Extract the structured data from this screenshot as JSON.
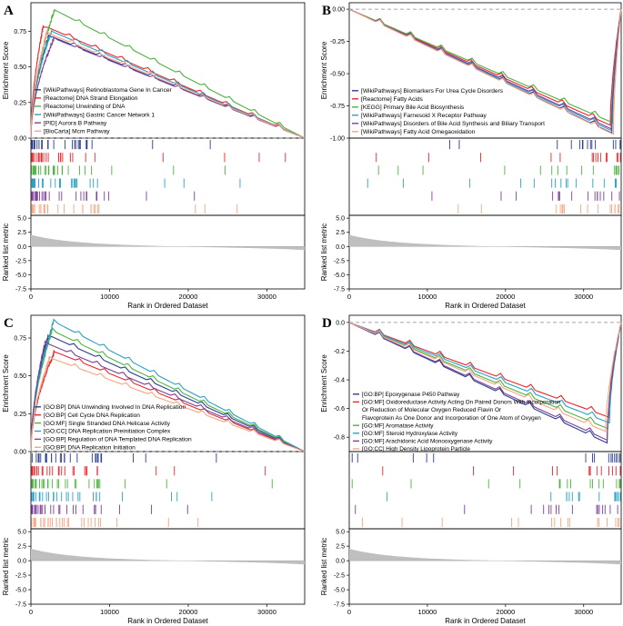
{
  "figure": {
    "colors": {
      "series": [
        "#2b3f8f",
        "#e8262b",
        "#4db33e",
        "#2aa0c4",
        "#7d3f98",
        "#f4a582"
      ],
      "zero_line": "#888888",
      "metric_fill": "#bfbfbf",
      "axis": "#000000"
    }
  },
  "chart_data": [
    {
      "panel": "A",
      "type": "line",
      "ylabel": "Enrichment Score",
      "metric_ylabel": "Ranked list metric",
      "xlabel": "Rank in Ordered Dataset",
      "ylim": [
        0,
        0.95
      ],
      "xlim": [
        0,
        34800
      ],
      "y_ticks": [
        "0.00",
        "0.25",
        "0.50",
        "0.75"
      ],
      "y_tick_values": [
        0,
        0.25,
        0.5,
        0.75
      ],
      "metric_ylim": [
        -7.5,
        5.5
      ],
      "metric_ticks": [
        "5.0",
        "2.5",
        "0.0",
        "-2.5",
        "-5.0",
        "-7.5"
      ],
      "metric_tick_values": [
        5,
        2.5,
        0,
        -2.5,
        -5,
        -7.5
      ],
      "x_ticks": [
        "0",
        "10000",
        "20000",
        "30000"
      ],
      "x_tick_values": [
        0,
        10000,
        20000,
        30000
      ],
      "series": [
        {
          "name": "[WikiPathways] Retinoblastoma Gene In Cancer",
          "peak_rank": 2300,
          "peak_es": 0.72
        },
        {
          "name": "[Reactome] DNA Strand Elongation",
          "peak_rank": 1600,
          "peak_es": 0.79
        },
        {
          "name": "[Reactome] Unwinding of DNA",
          "peak_rank": 3000,
          "peak_es": 0.9
        },
        {
          "name": "[WikiPathways] Gastric Cancer Network 1",
          "peak_rank": 2600,
          "peak_es": 0.75
        },
        {
          "name": "[PID] Aurora B Pathway",
          "peak_rank": 2900,
          "peak_es": 0.7
        },
        {
          "name": "[BioCarta] Mcm Pathway",
          "peak_rank": 2000,
          "peak_es": 0.74
        }
      ]
    },
    {
      "panel": "B",
      "type": "line",
      "ylabel": "Enrichment Score",
      "metric_ylabel": "Ranked list metric",
      "xlabel": "Rank in Ordered Dataset",
      "ylim": [
        -1.0,
        0.05
      ],
      "xlim": [
        0,
        34800
      ],
      "y_ticks": [
        "0.00",
        "-0.25",
        "-0.50",
        "-0.75",
        "-1.00"
      ],
      "y_tick_values": [
        0,
        -0.25,
        -0.5,
        -0.75,
        -1.0
      ],
      "metric_ylim": [
        -7.5,
        5.5
      ],
      "metric_ticks": [
        "5.0",
        "2.5",
        "0.0",
        "-2.5",
        "-5.0",
        "-7.5"
      ],
      "metric_tick_values": [
        5,
        2.5,
        0,
        -2.5,
        -5,
        -7.5
      ],
      "x_ticks": [
        "0",
        "10000",
        "20000",
        "30000"
      ],
      "x_tick_values": [
        0,
        10000,
        20000,
        30000
      ],
      "series": [
        {
          "name": "[WikiPathways] Biomarkers For Urea Cycle Disorders",
          "peak_rank": 33600,
          "peak_es": -0.96
        },
        {
          "name": "[Reactome] Fatty Acids",
          "peak_rank": 33400,
          "peak_es": -0.9
        },
        {
          "name": "[KEGG] Primary Bile Acid Biosynthesis",
          "peak_rank": 33700,
          "peak_es": -0.88
        },
        {
          "name": "[WikiPathways] Farnesoid X Receptor Pathway",
          "peak_rank": 33500,
          "peak_es": -0.94
        },
        {
          "name": "[WikiPathways] Disorders of Bile Acid Synthesis and Biliary Transport",
          "peak_rank": 33600,
          "peak_es": -0.93
        },
        {
          "name": "[WikiPathways] Fatty Acid Omegaoxidation",
          "peak_rank": 33800,
          "peak_es": -0.97
        }
      ]
    },
    {
      "panel": "C",
      "type": "line",
      "ylabel": "Enrichment Score",
      "metric_ylabel": "Ranked list metric",
      "xlabel": "Rank in Ordered Dataset",
      "ylim": [
        0,
        0.9
      ],
      "xlim": [
        0,
        34800
      ],
      "y_ticks": [
        "0.00",
        "0.25",
        "0.50",
        "0.75"
      ],
      "y_tick_values": [
        0,
        0.25,
        0.5,
        0.75
      ],
      "metric_ylim": [
        -7.5,
        5.5
      ],
      "metric_ticks": [
        "5.0",
        "2.5",
        "0.0",
        "-2.5",
        "-5.0",
        "-7.5"
      ],
      "metric_tick_values": [
        5,
        2.5,
        0,
        -2.5,
        -5,
        -7.5
      ],
      "x_ticks": [
        "0",
        "10000",
        "20000",
        "30000"
      ],
      "x_tick_values": [
        0,
        10000,
        20000,
        30000
      ],
      "series": [
        {
          "name": "[GO:BP] DNA Unwinding Involved In DNA Replication",
          "peak_rank": 2200,
          "peak_es": 0.77
        },
        {
          "name": "[GO:BP] Cell Cycle DNA Replication",
          "peak_rank": 3000,
          "peak_es": 0.66
        },
        {
          "name": "[GO:MF] Single Stranded DNA Helicase Activity",
          "peak_rank": 2700,
          "peak_es": 0.8
        },
        {
          "name": "[GO:CC] DNA Replication Preinitiation Complex",
          "peak_rank": 2900,
          "peak_es": 0.86
        },
        {
          "name": "[GO:BP] Regulation of DNA Templated DNA Replication",
          "peak_rank": 1800,
          "peak_es": 0.72
        },
        {
          "name": "[GO:BP] DNA Replication Initiation",
          "peak_rank": 2400,
          "peak_es": 0.62
        }
      ]
    },
    {
      "panel": "D",
      "type": "line",
      "ylabel": "Enrichment Score",
      "metric_ylabel": "Ranked list metric",
      "xlabel": "Rank in Ordered Dataset",
      "ylim": [
        -0.9,
        0.05
      ],
      "xlim": [
        0,
        34800
      ],
      "y_ticks": [
        "0.0",
        "-0.2",
        "-0.4",
        "-0.6",
        "-0.8"
      ],
      "y_tick_values": [
        0,
        -0.2,
        -0.4,
        -0.6,
        -0.8
      ],
      "metric_ylim": [
        -7.5,
        5.5
      ],
      "metric_ticks": [
        "5.0",
        "2.5",
        "0.0",
        "-2.5",
        "-5.0",
        "-7.5"
      ],
      "metric_tick_values": [
        5,
        2.5,
        0,
        -2.5,
        -5,
        -7.5
      ],
      "x_ticks": [
        "0",
        "10000",
        "20000",
        "30000"
      ],
      "x_tick_values": [
        0,
        10000,
        20000,
        30000
      ],
      "series": [
        {
          "name": "[GO:BP] Epoxygenase P450 Pathway",
          "peak_rank": 33000,
          "peak_es": -0.84
        },
        {
          "name": "[GO:MF] Oxidoreductase Activity Acting On Paired Donors With Incorporation Or Reduction of Molecular Oxygen Reduced Flavin Or Flavoprotein As One Donor and Incorporation of One Atom of Oxygen",
          "peak_rank": 33200,
          "peak_es": -0.66
        },
        {
          "name": "[GO:MF] Aromatase Activity",
          "peak_rank": 33100,
          "peak_es": -0.74
        },
        {
          "name": "[GO:MF] Steroid Hydroxylase Activity",
          "peak_rank": 33300,
          "peak_es": -0.7
        },
        {
          "name": "[GO:MF] Arachidonic Acid Monooxygenase Activity",
          "peak_rank": 33000,
          "peak_es": -0.82
        },
        {
          "name": "[GO:CC] High Density Lipoprotein Particle",
          "peak_rank": 32800,
          "peak_es": -0.76
        }
      ],
      "legend_lines": [
        "[GO:BP] Epoxygenase P450 Pathway",
        "[GO:MF] Oxidoreductase Activity Acting On Paired Donors With Incorporation",
        "Or Reduction of Molecular Oxygen Reduced Flavin Or",
        "Flavoprotein As One Donor and Incorporation of One Atom of Oxygen",
        "[GO:MF] Aromatase Activity",
        "[GO:MF] Steroid Hydroxylase Activity",
        "[GO:MF] Arachidonic Acid Monooxygenase Activity",
        "[GO:CC] High Density Lipoprotein Particle"
      ],
      "legend_line_series": [
        0,
        1,
        -1,
        -1,
        2,
        3,
        4,
        5
      ]
    }
  ]
}
